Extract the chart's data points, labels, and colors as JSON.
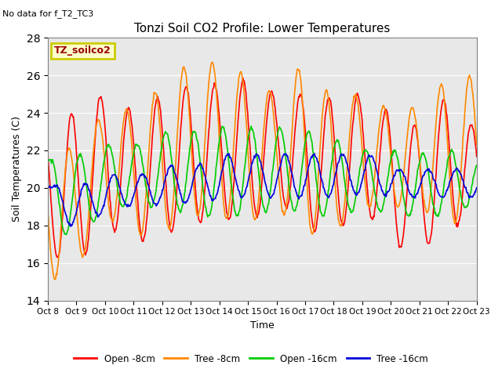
{
  "title": "Tonzi Soil CO2 Profile: Lower Temperatures",
  "subtitle": "No data for f_T2_TC3",
  "ylabel": "Soil Temperatures (C)",
  "xlabel": "Time",
  "ylim": [
    14,
    28
  ],
  "yticks": [
    14,
    16,
    18,
    20,
    22,
    24,
    26,
    28
  ],
  "xtick_labels": [
    "Oct 8",
    "Oct 9",
    "Oct 10",
    "Oct 11",
    "Oct 12",
    "Oct 13",
    "Oct 14",
    "Oct 15",
    "Oct 16",
    "Oct 17",
    "Oct 18",
    "Oct 19",
    "Oct 20",
    "Oct 21",
    "Oct 22",
    "Oct 23"
  ],
  "legend_labels": [
    "Open -8cm",
    "Tree -8cm",
    "Open -16cm",
    "Tree -16cm"
  ],
  "legend_colors": [
    "#ff0000",
    "#ff8800",
    "#00cc00",
    "#0000dd"
  ],
  "box_label": "TZ_soilco2",
  "box_facecolor": "#ffffcc",
  "box_edgecolor": "#cccc00",
  "plot_bg_color": "#e8e8e8",
  "line_width": 1.2
}
